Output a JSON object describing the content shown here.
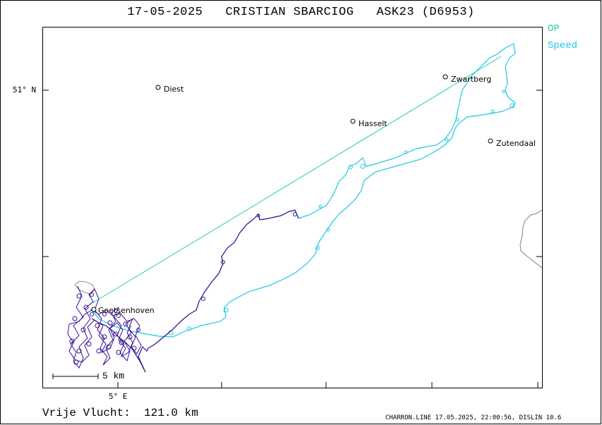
{
  "header": {
    "title": "17-05-2025   CRISTIAN SBARCIOG   ASK23 (D6953)"
  },
  "legend": {
    "items": [
      {
        "label": "OP",
        "color": "#1fd0a8"
      },
      {
        "label": "Speed",
        "color": "#1ec8e6"
      }
    ]
  },
  "axes": {
    "lat_label": "51° N",
    "lon_label": "5° E"
  },
  "places": [
    {
      "name": "Diest"
    },
    {
      "name": "Zwartberg"
    },
    {
      "name": "Hasselt"
    },
    {
      "name": "Zutendaal"
    },
    {
      "name": "Goetsenhoven"
    }
  ],
  "scale": {
    "label": "5 km"
  },
  "footer": {
    "distance": "Vrije Vlucht:  121.0 km",
    "info": "CHARRON.LINE 17.05.2025, 22:00:56, DISLIN 10.6"
  },
  "colors": {
    "op_line": "#1fd0a8",
    "track_outbound": "#1ec8e6",
    "track_climb": "#2a0a8a",
    "border": "#808080"
  }
}
